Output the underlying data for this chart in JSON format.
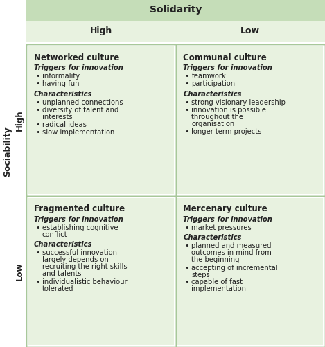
{
  "title": "Solidarity",
  "row_header": "Sociability",
  "col_headers": [
    "High",
    "Low"
  ],
  "row_labels": [
    "High",
    "Low"
  ],
  "header_bg": "#c5ddb8",
  "cell_bg": "#e8f2e0",
  "white_bg": "#ffffff",
  "border_color": "#a8c89a",
  "cells": [
    {
      "title": "Networked culture",
      "section1_label": "Triggers for innovation",
      "section1_bullets": [
        "informality",
        "having fun"
      ],
      "section2_label": "Characteristics",
      "section2_bullets": [
        "unplanned connections",
        "diversity of talent and\ninterests",
        "radical ideas",
        "slow implementation"
      ],
      "row": 0,
      "col": 0
    },
    {
      "title": "Communal culture",
      "section1_label": "Triggers for innovation",
      "section1_bullets": [
        "teamwork",
        "participation"
      ],
      "section2_label": "Characteristics",
      "section2_bullets": [
        "strong visionary leadership",
        "innovation is possible\nthroughout the\norganisation",
        "longer-term projects"
      ],
      "row": 0,
      "col": 1
    },
    {
      "title": "Fragmented culture",
      "section1_label": "Triggers for innovation",
      "section1_bullets": [
        "establishing cognitive\nconflict"
      ],
      "section2_label": "Characteristics",
      "section2_bullets": [
        "successful innovation\nlargely depends on\nrecruiting the right skills\nand talents",
        "individualistic behaviour\ntolerated"
      ],
      "row": 1,
      "col": 0
    },
    {
      "title": "Mercenary culture",
      "section1_label": "Triggers for innovation",
      "section1_bullets": [
        "market pressures"
      ],
      "section2_label": "Characteristics",
      "section2_bullets": [
        "planned and measured\noutcomes in mind from\nthe beginning",
        "accepting of incremental\nsteps",
        "capable of fast\nimplementation"
      ],
      "row": 1,
      "col": 1
    }
  ],
  "figw": 4.69,
  "figh": 5.01,
  "dpi": 100
}
